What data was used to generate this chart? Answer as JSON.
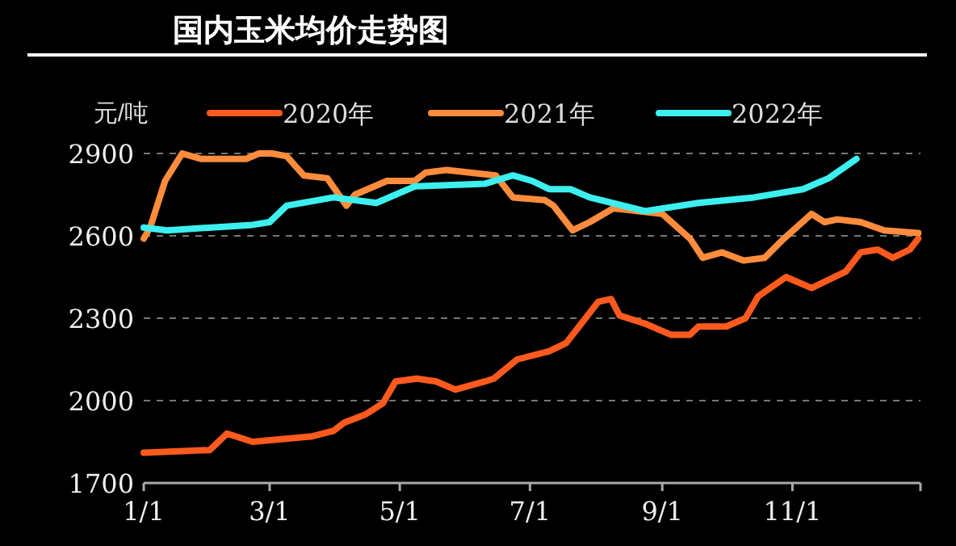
{
  "chart_data": {
    "type": "line",
    "title": "国内玉米均价走势图",
    "ylabel": "元/吨",
    "xlim": [
      "--01-01",
      "--12-31"
    ],
    "xticks": [
      {
        "value": "--01-01",
        "label": "1/1"
      },
      {
        "value": "--03-01",
        "label": "3/1"
      },
      {
        "value": "--05-01",
        "label": "5/1"
      },
      {
        "value": "--07-01",
        "label": "7/1"
      },
      {
        "value": "--09-01",
        "label": "9/1"
      },
      {
        "value": "--11-01",
        "label": "11/1"
      },
      {
        "value": "--12-31",
        "label": null
      }
    ],
    "ylim": [
      1700,
      2900
    ],
    "yticks": [
      1700,
      2000,
      2300,
      2600,
      2900
    ],
    "grid": "y",
    "legend": "top",
    "line_style": "solid",
    "series": [
      {
        "name": "2020年",
        "color": "#ff5a1e",
        "x": [
          "--01-01",
          "--02-01",
          "--02-09",
          "--02-21",
          "--03-21",
          "--03-31",
          "--04-05",
          "--04-15",
          "--04-23",
          "--04-29",
          "--05-09",
          "--05-18",
          "--05-27",
          "--06-10",
          "--06-14",
          "--06-25",
          "--07-10",
          "--07-18",
          "--07-24",
          "--08-02",
          "--08-08",
          "--08-12",
          "--08-24",
          "--09-05",
          "--09-14",
          "--09-18",
          "--10-01",
          "--10-10",
          "--10-16",
          "--10-29",
          "--11-10",
          "--11-26",
          "--12-03",
          "--12-11",
          "--12-18",
          "--12-26",
          "--12-30"
        ],
        "values": [
          1810,
          1820,
          1880,
          1850,
          1870,
          1890,
          1920,
          1950,
          1990,
          2070,
          2080,
          2070,
          2040,
          2070,
          2080,
          2150,
          2180,
          2210,
          2270,
          2360,
          2370,
          2310,
          2280,
          2240,
          2240,
          2270,
          2270,
          2300,
          2380,
          2450,
          2410,
          2470,
          2540,
          2550,
          2520,
          2550,
          2590
        ]
      },
      {
        "name": "2021年",
        "color": "#ff8c3c",
        "x": [
          "--01-01",
          "--01-04",
          "--01-11",
          "--01-19",
          "--01-28",
          "--02-18",
          "--02-24",
          "--03-02",
          "--03-09",
          "--03-17",
          "--03-28",
          "--04-06",
          "--04-10",
          "--04-25",
          "--05-08",
          "--05-13",
          "--05-23",
          "--06-15",
          "--06-23",
          "--07-08",
          "--07-12",
          "--07-21",
          "--07-29",
          "--08-09",
          "--09-01",
          "--09-14",
          "--09-20",
          "--09-29",
          "--10-09",
          "--10-19",
          "--10-28",
          "--11-10",
          "--11-16",
          "--11-22",
          "--12-03",
          "--12-14",
          "--12-30"
        ],
        "values": [
          2590,
          2630,
          2800,
          2900,
          2880,
          2880,
          2900,
          2900,
          2890,
          2820,
          2810,
          2710,
          2750,
          2800,
          2800,
          2830,
          2840,
          2820,
          2740,
          2730,
          2710,
          2620,
          2650,
          2700,
          2680,
          2590,
          2520,
          2540,
          2510,
          2520,
          2590,
          2680,
          2650,
          2660,
          2650,
          2620,
          2610
        ]
      },
      {
        "name": "2022年",
        "color": "#3cf0f0",
        "x": [
          "--01-01",
          "--01-12",
          "--02-21",
          "--03-01",
          "--03-09",
          "--03-31",
          "--04-20",
          "--05-08",
          "--06-10",
          "--06-23",
          "--07-02",
          "--07-10",
          "--07-20",
          "--07-29",
          "--08-24",
          "--09-18",
          "--10-14",
          "--11-06",
          "--11-18",
          "--12-01"
        ],
        "values": [
          2630,
          2620,
          2640,
          2650,
          2710,
          2740,
          2720,
          2780,
          2790,
          2820,
          2800,
          2770,
          2770,
          2740,
          2690,
          2720,
          2740,
          2770,
          2810,
          2880
        ]
      }
    ]
  }
}
